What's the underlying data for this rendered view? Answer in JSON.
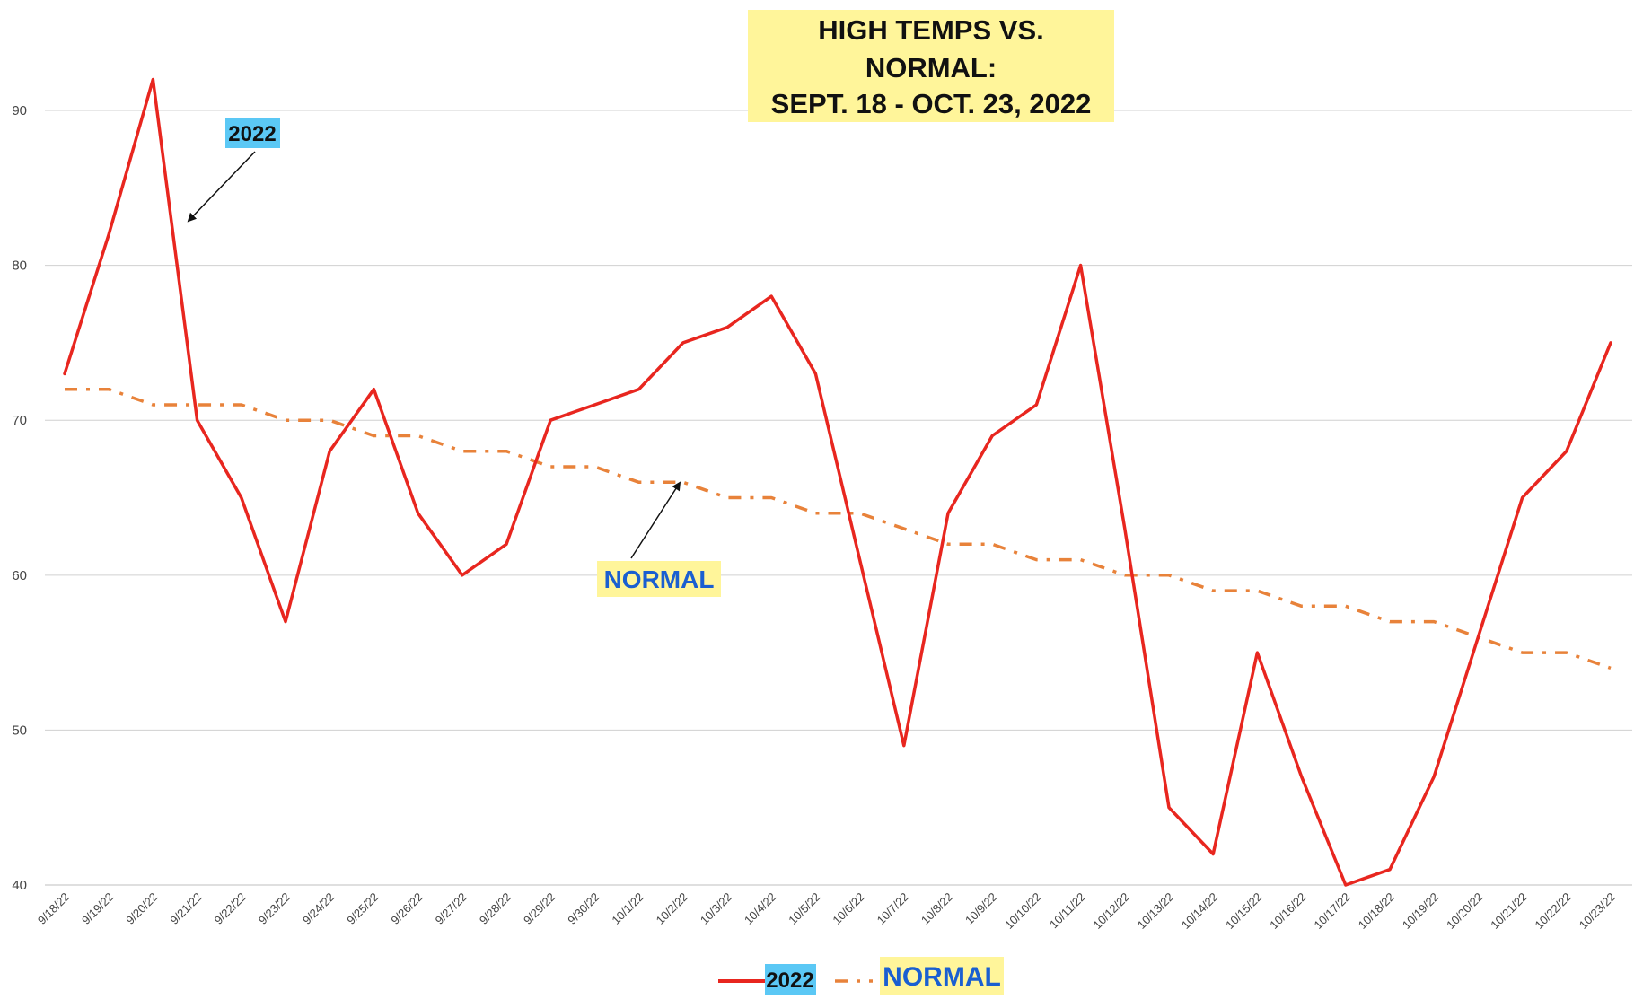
{
  "chart_data": {
    "type": "line",
    "title": "HIGH TEMPS VS. NORMAL: SEPT. 18 - OCT. 23, 2022",
    "title_lines": [
      "HIGH TEMPS VS.",
      "NORMAL:",
      "SEPT. 18 - OCT. 23, 2022"
    ],
    "xlabel": "",
    "ylabel": "",
    "ylim": [
      40,
      94
    ],
    "yticks": [
      40,
      50,
      60,
      70,
      80,
      90
    ],
    "grid": true,
    "legend_position": "bottom",
    "categories": [
      "9/18/22",
      "9/19/22",
      "9/20/22",
      "9/21/22",
      "9/22/22",
      "9/23/22",
      "9/24/22",
      "9/25/22",
      "9/26/22",
      "9/27/22",
      "9/28/22",
      "9/29/22",
      "9/30/22",
      "10/1/22",
      "10/2/22",
      "10/3/22",
      "10/4/22",
      "10/5/22",
      "10/6/22",
      "10/7/22",
      "10/8/22",
      "10/9/22",
      "10/10/22",
      "10/11/22",
      "10/12/22",
      "10/13/22",
      "10/14/22",
      "10/15/22",
      "10/16/22",
      "10/17/22",
      "10/18/22",
      "10/19/22",
      "10/20/22",
      "10/21/22",
      "10/22/22",
      "10/23/22"
    ],
    "series": [
      {
        "name": "2022",
        "color": "#e8261f",
        "style": "solid",
        "values": [
          73,
          82,
          92,
          70,
          65,
          57,
          68,
          72,
          64,
          60,
          62,
          70,
          71,
          72,
          75,
          76,
          78,
          73,
          61,
          49,
          64,
          69,
          71,
          80,
          63,
          45,
          42,
          55,
          47,
          40,
          41,
          47,
          56,
          65,
          68,
          75
        ]
      },
      {
        "name": "NORMAL",
        "color": "#e8823a",
        "style": "dash-dot",
        "values": [
          72,
          72,
          71,
          71,
          71,
          70,
          70,
          69,
          69,
          68,
          68,
          67,
          67,
          66,
          66,
          65,
          65,
          64,
          64,
          63,
          62,
          62,
          61,
          61,
          60,
          60,
          59,
          59,
          58,
          58,
          57,
          57,
          56,
          55,
          55,
          54
        ]
      }
    ],
    "annotations": [
      {
        "text": "2022",
        "series": "2022",
        "background": "#5bc8f5",
        "points_to_category": "9/21/22",
        "points_to_value": 82
      },
      {
        "text": "NORMAL",
        "series": "NORMAL",
        "background": "#fff59a",
        "points_to_category": "10/2/22",
        "points_to_value": 65.5
      }
    ],
    "title_background": "#fff59a"
  }
}
